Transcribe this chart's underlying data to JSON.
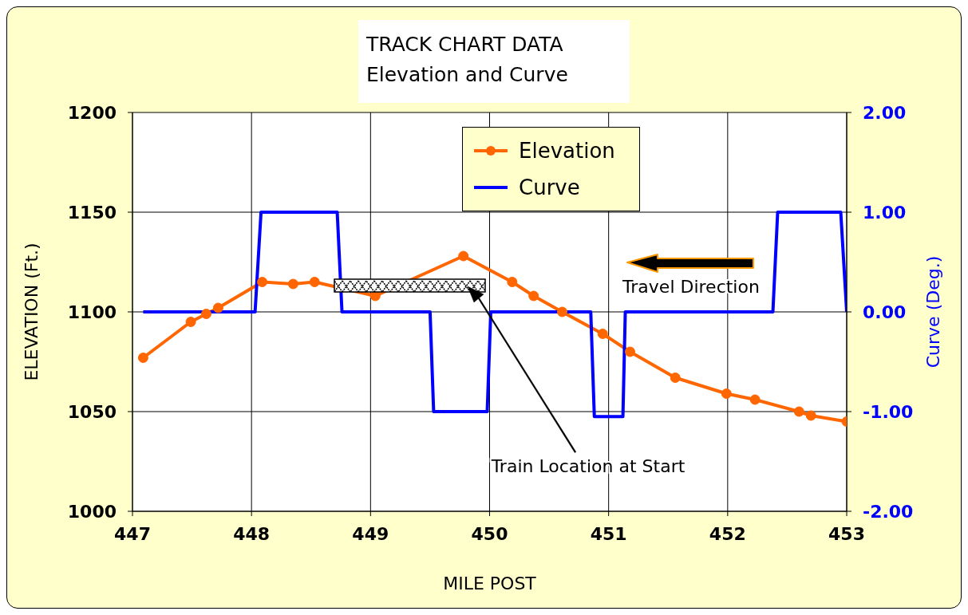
{
  "chart_data": {
    "type": "line",
    "title": "TRACK CHART DATA",
    "subtitle": "Elevation and Curve",
    "xlabel": "MILE POST",
    "ylabel": "ELEVATION (Ft.)",
    "y2label": "Curve (Deg.)",
    "series": [
      {
        "name": "Elevation",
        "color": "#ff6600",
        "marker": "circle",
        "x": [
          447.09,
          447.49,
          447.62,
          447.72,
          448.09,
          448.35,
          448.53,
          449.04,
          449.78,
          450.19,
          450.37,
          450.61,
          450.95,
          451.18,
          451.56,
          451.99,
          452.23,
          452.6,
          452.7,
          453.0
        ],
        "values": [
          1077,
          1095,
          1099,
          1102,
          1115,
          1114,
          1115,
          1108,
          1128,
          1115,
          1108,
          1100,
          1089,
          1080,
          1067,
          1059,
          1056,
          1050,
          1048,
          1045
        ]
      },
      {
        "name": "Curve",
        "color": "#0000ff",
        "marker": "none",
        "axis": "y2",
        "x": [
          447.09,
          448.03,
          448.08,
          448.72,
          448.76,
          449.5,
          449.53,
          449.98,
          450.01,
          450.85,
          450.88,
          451.12,
          451.14,
          452.38,
          452.42,
          452.95,
          453.0
        ],
        "values": [
          0,
          0,
          1,
          1,
          0,
          0,
          -1,
          -1,
          0,
          0,
          -1.05,
          -1.05,
          0,
          0,
          1,
          1,
          0
        ]
      }
    ],
    "xlim": [
      447,
      453
    ],
    "xticks": [
      447,
      448,
      449,
      450,
      451,
      452,
      453
    ],
    "ylim": [
      1000,
      1200
    ],
    "yticks": [
      1000,
      1050,
      1100,
      1150,
      1200
    ],
    "y2lim": [
      -2,
      2
    ],
    "y2ticks": [
      {
        "value": -2,
        "label": "-2.00"
      },
      {
        "value": -1,
        "label": "-1.00"
      },
      {
        "value": 0,
        "label": "0.00"
      },
      {
        "value": 1,
        "label": "1.00"
      },
      {
        "value": 2,
        "label": "2.00"
      }
    ],
    "grid": true,
    "legend": "top",
    "annotations": [
      "Travel Direction",
      "Train Location at Start"
    ]
  }
}
